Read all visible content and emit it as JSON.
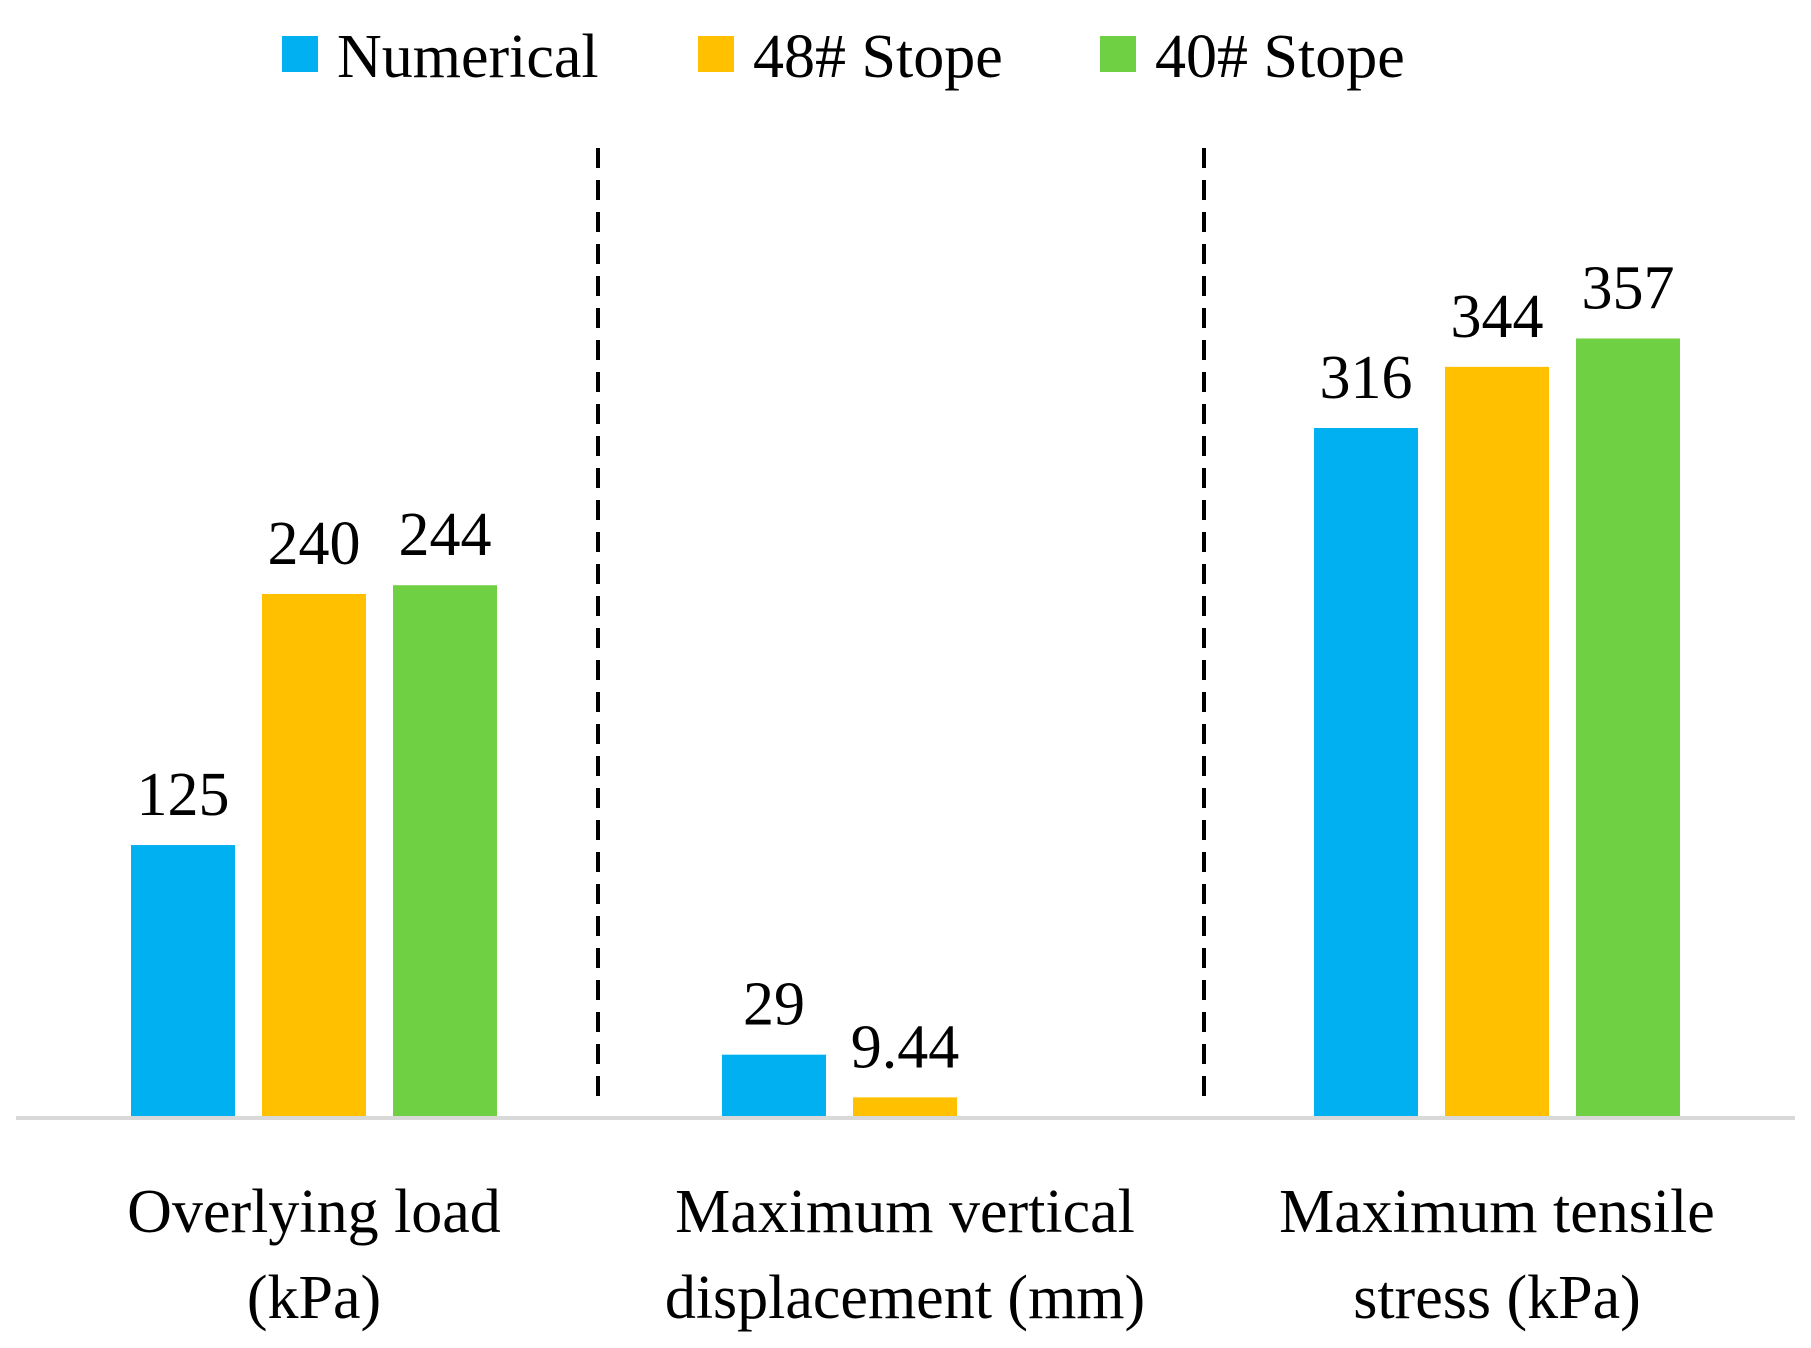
{
  "chart_data": {
    "type": "bar",
    "title": "",
    "xlabel": "",
    "ylabel": "",
    "grid": false,
    "legend_position": "top-center",
    "categories": [
      [
        "Overlying load",
        "(kPa)"
      ],
      [
        "Maximum vertical",
        "displacement (mm)"
      ],
      [
        "Maximum tensile",
        "stress (kPa)"
      ]
    ],
    "series": [
      {
        "name": "Numerical",
        "color": "#00B0F0",
        "values": [
          125,
          29,
          316
        ],
        "labels": [
          "125",
          "29",
          "316"
        ]
      },
      {
        "name": "48# Stope",
        "color": "#FFC000",
        "values": [
          240,
          9.44,
          344
        ],
        "labels": [
          "240",
          "9.44",
          "344"
        ]
      },
      {
        "name": "40# Stope",
        "color": "#70D044",
        "values": [
          244,
          null,
          357
        ],
        "labels": [
          "244",
          null,
          "357"
        ]
      }
    ],
    "ylim": [
      0,
      425
    ],
    "separators": "dashed vertical lines between groups",
    "axis_color": "#D9D9D9"
  }
}
